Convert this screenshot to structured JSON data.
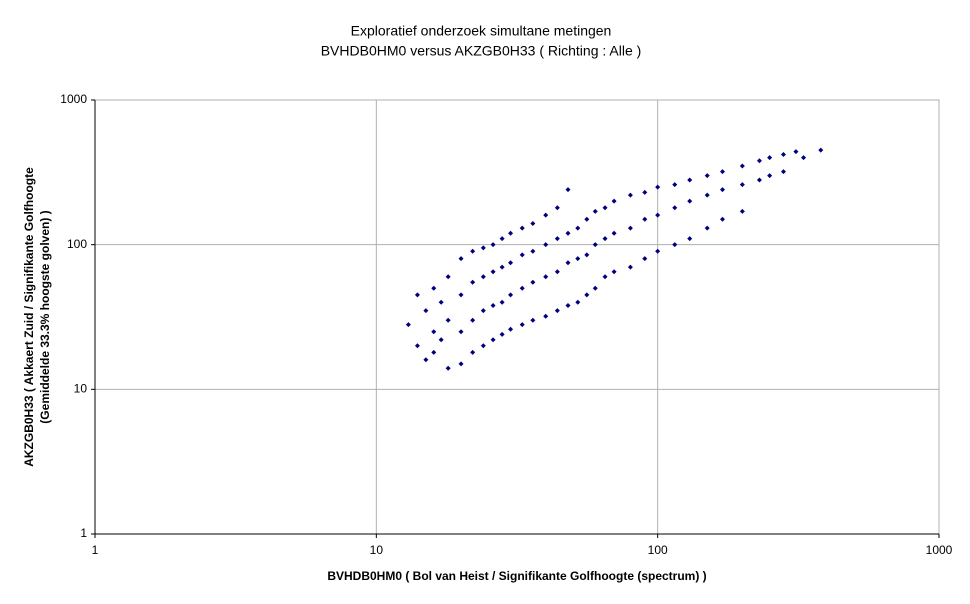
{
  "chart_data": {
    "type": "scatter",
    "title": "Exploratief onderzoek simultane metingen",
    "subtitle": "BVHDB0HM0 versus AKZGB0H33 ( Richting : Alle )",
    "x_label": "BVHDB0HM0 ( Bol van Heist / Signifikante Golfhoogte (spectrum) )",
    "y_label": [
      "AKZGB0H33 ( Akkaert Zuid / Signifikante Golfhoogte",
      "(Gemiddelde 33.3%  hoogste golven) )"
    ],
    "log_x": true,
    "log_y": true,
    "grid": true,
    "xlim": [
      1,
      1000
    ],
    "ylim": [
      1,
      1000
    ],
    "xticks": [
      1,
      10,
      100,
      1000
    ],
    "yticks": [
      1,
      10,
      100,
      1000
    ],
    "color": "#000080",
    "x": [
      13,
      14,
      14,
      15,
      15,
      16,
      16,
      16,
      17,
      17,
      18,
      18,
      18,
      20,
      20,
      20,
      20,
      22,
      22,
      22,
      22,
      24,
      24,
      24,
      24,
      26,
      26,
      26,
      26,
      28,
      28,
      28,
      28,
      30,
      30,
      30,
      30,
      33,
      33,
      33,
      33,
      36,
      36,
      36,
      36,
      40,
      40,
      40,
      40,
      44,
      44,
      44,
      44,
      48,
      48,
      48,
      48,
      52,
      52,
      52,
      56,
      56,
      56,
      60,
      60,
      60,
      65,
      65,
      65,
      70,
      70,
      70,
      80,
      80,
      80,
      90,
      90,
      90,
      100,
      100,
      100,
      115,
      115,
      115,
      130,
      130,
      130,
      150,
      150,
      150,
      170,
      170,
      170,
      200,
      200,
      200,
      230,
      230,
      250,
      250,
      280,
      280,
      310,
      330,
      380
    ],
    "values": [
      28,
      20,
      45,
      35,
      16,
      50,
      25,
      18,
      40,
      22,
      60,
      30,
      14,
      80,
      45,
      25,
      15,
      90,
      55,
      30,
      18,
      95,
      60,
      35,
      20,
      100,
      65,
      38,
      22,
      110,
      70,
      40,
      24,
      120,
      75,
      45,
      26,
      130,
      85,
      50,
      28,
      140,
      90,
      55,
      30,
      160,
      100,
      60,
      32,
      180,
      110,
      65,
      35,
      240,
      120,
      75,
      38,
      130,
      80,
      40,
      150,
      85,
      45,
      170,
      100,
      50,
      180,
      110,
      60,
      200,
      120,
      65,
      220,
      130,
      70,
      230,
      150,
      80,
      250,
      160,
      90,
      260,
      180,
      100,
      280,
      200,
      110,
      300,
      220,
      130,
      320,
      240,
      150,
      350,
      260,
      170,
      380,
      280,
      400,
      300,
      420,
      320,
      440,
      400,
      450
    ]
  }
}
